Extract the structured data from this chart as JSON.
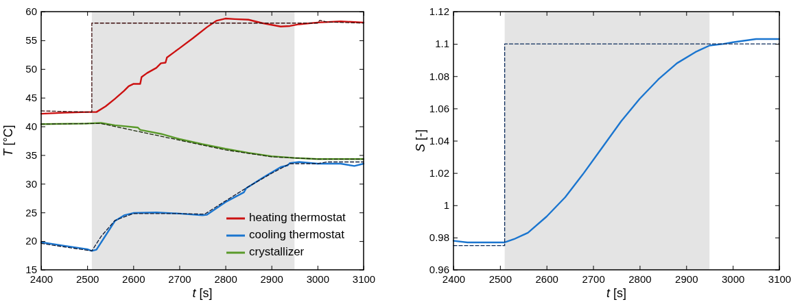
{
  "chart_data": [
    {
      "type": "line",
      "xlabel": "t [s]",
      "ylabel": "T [°C]",
      "xlim": [
        2400,
        3100
      ],
      "ylim": [
        15,
        60
      ],
      "xticks": [
        2400,
        2500,
        2600,
        2700,
        2800,
        2900,
        3000,
        3100
      ],
      "yticks": [
        15,
        20,
        25,
        30,
        35,
        40,
        45,
        50,
        55,
        60
      ],
      "grid": false,
      "legend": "bottom right",
      "marker": "none",
      "bands": [
        {
          "axis": "x",
          "from": 2510,
          "to": 2950,
          "color": "#e4e4e4"
        }
      ],
      "series": [
        {
          "name": "heating thermostat",
          "color": "#cc1111",
          "line_style": "solid",
          "x": [
            2400,
            2450,
            2500,
            2520,
            2540,
            2560,
            2580,
            2590,
            2600,
            2615,
            2618,
            2630,
            2650,
            2660,
            2670,
            2673,
            2700,
            2730,
            2760,
            2780,
            2800,
            2820,
            2850,
            2880,
            2900,
            2920,
            2940,
            2960,
            3000,
            3050,
            3100
          ],
          "values": [
            42.2,
            42.4,
            42.5,
            42.5,
            43.5,
            44.8,
            46.2,
            47.0,
            47.4,
            47.4,
            48.6,
            49.3,
            50.2,
            51.0,
            51.1,
            52.0,
            53.6,
            55.4,
            57.3,
            58.4,
            58.8,
            58.7,
            58.6,
            58.0,
            57.7,
            57.4,
            57.5,
            57.8,
            58.1,
            58.3,
            58.1
          ]
        },
        {
          "color": "#3a0a0a",
          "line_style": "dashed",
          "x": [
            2400,
            2500,
            2510,
            2510,
            3000,
            3005,
            3020,
            3100
          ],
          "values": [
            42.7,
            42.5,
            42.5,
            58,
            58,
            58.5,
            58.2,
            58.0
          ]
        },
        {
          "name": "cooling thermostat",
          "color": "#1a75cf",
          "line_style": "solid",
          "x": [
            2400,
            2450,
            2500,
            2510,
            2520,
            2540,
            2560,
            2580,
            2600,
            2650,
            2700,
            2750,
            2760,
            2800,
            2840,
            2845,
            2880,
            2920,
            2935,
            2940,
            2960,
            3000,
            3050,
            3080,
            3100
          ],
          "values": [
            19.8,
            19.2,
            18.6,
            18.3,
            18.5,
            21.0,
            23.5,
            24.5,
            24.9,
            25.0,
            24.8,
            24.5,
            24.6,
            26.8,
            28.5,
            29.2,
            31.0,
            32.9,
            33.2,
            33.6,
            33.8,
            33.5,
            33.5,
            33.1,
            33.5
          ]
        },
        {
          "color": "#0a1a3a",
          "line_style": "dashed",
          "x": [
            2400,
            2450,
            2510,
            2530,
            2560,
            2600,
            2700,
            2755,
            2800,
            2850,
            2900,
            2940,
            3000,
            3020,
            3100
          ],
          "values": [
            19.6,
            19.0,
            18.3,
            20.8,
            23.6,
            24.8,
            24.8,
            24.7,
            27.0,
            29.5,
            31.8,
            33.5,
            33.5,
            33.8,
            33.8
          ]
        },
        {
          "name": "crystallizer",
          "color": "#5a9a2a",
          "line_style": "solid",
          "x": [
            2400,
            2500,
            2530,
            2560,
            2610,
            2615,
            2660,
            2700,
            2750,
            2800,
            2850,
            2900,
            2950,
            3000,
            3100
          ],
          "values": [
            40.4,
            40.5,
            40.6,
            40.2,
            39.8,
            39.4,
            38.7,
            37.8,
            36.9,
            36.1,
            35.4,
            34.8,
            34.5,
            34.3,
            34.3
          ]
        },
        {
          "color": "#1a2a0a",
          "line_style": "dashed",
          "x": [
            2400,
            2510,
            2530,
            2600,
            2700,
            2800,
            2900,
            2950,
            3000,
            3100
          ],
          "values": [
            40.4,
            40.5,
            40.5,
            39.3,
            37.6,
            35.9,
            34.7,
            34.5,
            34.3,
            34.3
          ]
        }
      ]
    },
    {
      "type": "line",
      "xlabel": "t [s]",
      "ylabel": "S [-]",
      "xlim": [
        2400,
        3100
      ],
      "ylim": [
        0.96,
        1.12
      ],
      "xticks": [
        2400,
        2500,
        2600,
        2700,
        2800,
        2900,
        3000,
        3100
      ],
      "yticks": [
        0.96,
        0.98,
        {
          "value": 1,
          "label": "1"
        },
        1.02,
        1.04,
        1.06,
        1.08,
        {
          "value": 1.1,
          "label": "1.1"
        },
        1.12
      ],
      "grid": false,
      "legend": false,
      "marker": "none",
      "bands": [
        {
          "axis": "x",
          "from": 2510,
          "to": 2950,
          "color": "#e4e4e4"
        }
      ],
      "series": [
        {
          "color": "#1a75cf",
          "line_style": "solid",
          "x": [
            2400,
            2430,
            2500,
            2510,
            2530,
            2560,
            2600,
            2640,
            2680,
            2720,
            2760,
            2800,
            2840,
            2880,
            2920,
            2950,
            2980,
            3000,
            3050,
            3100
          ],
          "values": [
            0.978,
            0.977,
            0.977,
            0.977,
            0.979,
            0.983,
            0.993,
            1.005,
            1.02,
            1.036,
            1.052,
            1.066,
            1.078,
            1.088,
            1.095,
            1.099,
            1.1,
            1.101,
            1.103,
            1.103
          ]
        },
        {
          "color": "#0a2a5a",
          "line_style": "dashed",
          "x": [
            2400,
            2510,
            2510,
            3100
          ],
          "values": [
            0.975,
            0.975,
            1.1,
            1.1
          ]
        }
      ]
    }
  ]
}
